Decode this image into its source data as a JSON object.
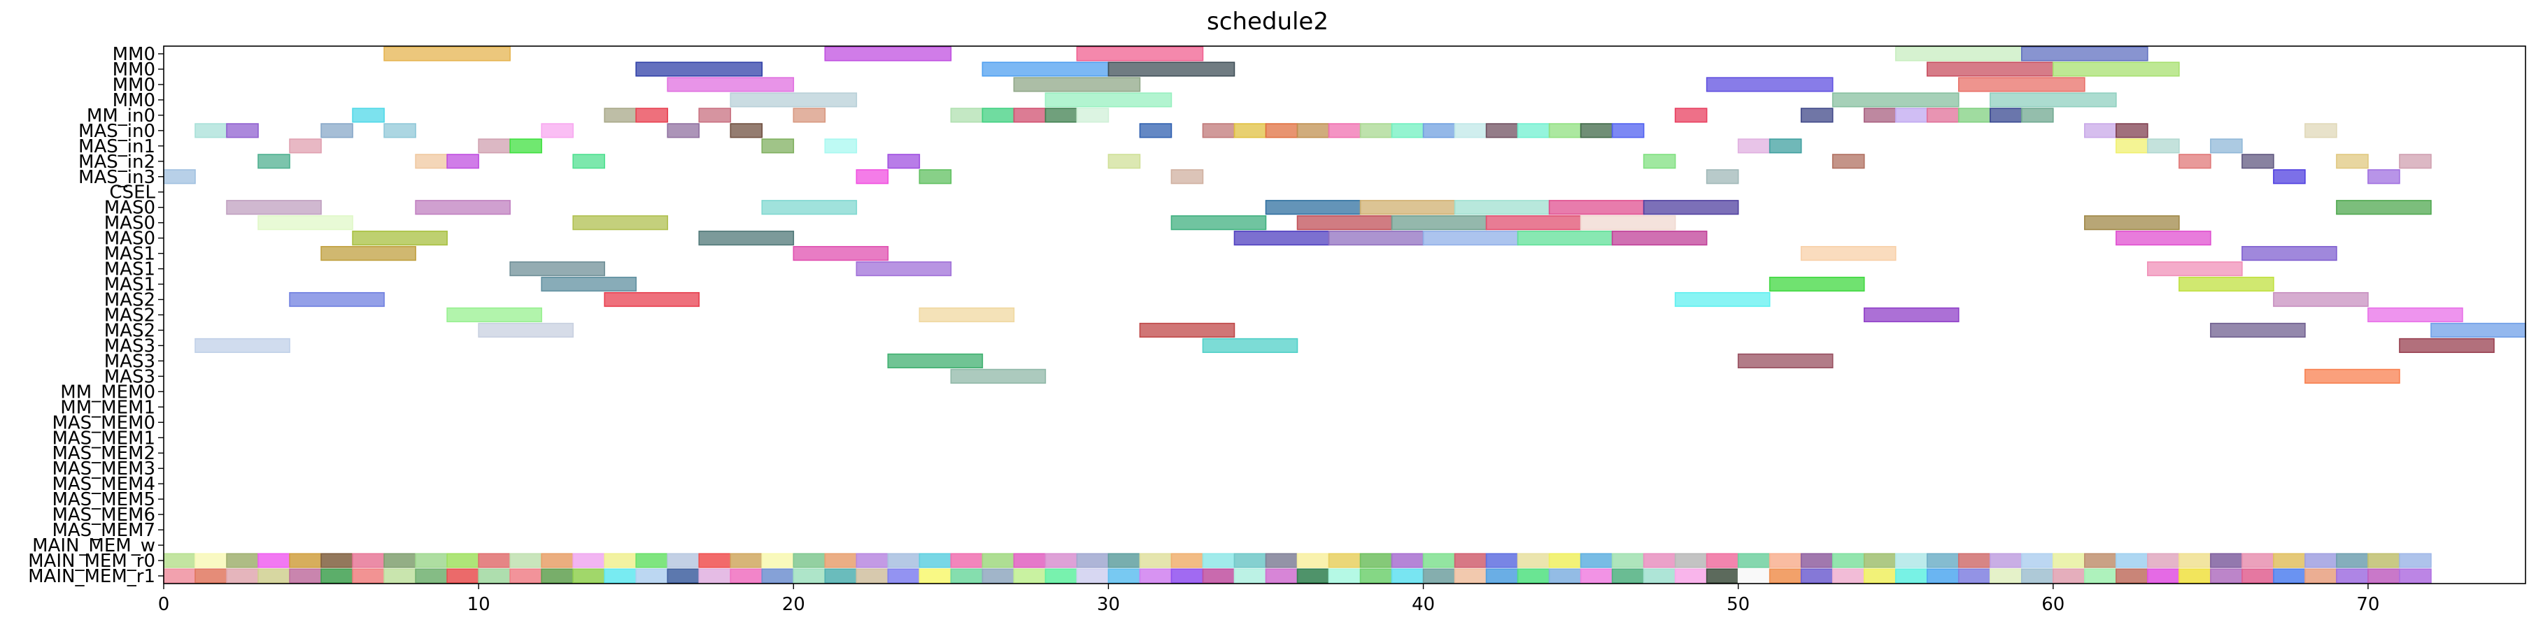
{
  "chart_data": {
    "type": "gantt",
    "title": "schedule2",
    "xlabel": "",
    "ylabel": "",
    "xlim": [
      0,
      75
    ],
    "xticks": [
      0,
      10,
      20,
      30,
      40,
      50,
      60,
      70
    ],
    "grid": false,
    "legend": "none",
    "rows": [
      "MM0",
      "MM0",
      "MM0",
      "MM0",
      "MM_in0",
      "MAS_in0",
      "MAS_in1",
      "MAS_in2",
      "MAS_in3",
      "CSEL",
      "MAS0",
      "MAS0",
      "MAS0",
      "MAS1",
      "MAS1",
      "MAS1",
      "MAS2",
      "MAS2",
      "MAS2",
      "MAS3",
      "MAS3",
      "MAS3",
      "MM_MEM0",
      "MM_MEM1",
      "MAS_MEM0",
      "MAS_MEM1",
      "MAS_MEM2",
      "MAS_MEM3",
      "MAS_MEM4",
      "MAS_MEM5",
      "MAS_MEM6",
      "MAS_MEM7",
      "MAIN_MEM_w",
      "MAIN_MEM_r0",
      "MAIN_MEM_r1"
    ],
    "bars": [
      {
        "row": 0,
        "start": 7,
        "end": 11,
        "color": "#e6b450"
      },
      {
        "row": 0,
        "start": 21,
        "end": 25,
        "color": "#c050e0"
      },
      {
        "row": 0,
        "start": 29,
        "end": 33,
        "color": "#f06090"
      },
      {
        "row": 0,
        "start": 55,
        "end": 59,
        "color": "#c8eec0"
      },
      {
        "row": 0,
        "start": 59,
        "end": 63,
        "color": "#6070c0"
      },
      {
        "row": 1,
        "start": 15,
        "end": 19,
        "color": "#3040a8"
      },
      {
        "row": 1,
        "start": 26,
        "end": 30,
        "color": "#50a0f0"
      },
      {
        "row": 1,
        "start": 30,
        "end": 34,
        "color": "#405058"
      },
      {
        "row": 1,
        "start": 56,
        "end": 60,
        "color": "#c85060"
      },
      {
        "row": 1,
        "start": 60,
        "end": 64,
        "color": "#a8e070"
      },
      {
        "row": 2,
        "start": 16,
        "end": 20,
        "color": "#e070e0"
      },
      {
        "row": 2,
        "start": 27,
        "end": 31,
        "color": "#90a888"
      },
      {
        "row": 2,
        "start": 49,
        "end": 53,
        "color": "#6050e0"
      },
      {
        "row": 2,
        "start": 57,
        "end": 61,
        "color": "#e87068"
      },
      {
        "row": 3,
        "start": 18,
        "end": 22,
        "color": "#b8d0d8"
      },
      {
        "row": 3,
        "start": 28,
        "end": 32,
        "color": "#98f0c0"
      },
      {
        "row": 3,
        "start": 53,
        "end": 57,
        "color": "#88c0a0"
      },
      {
        "row": 3,
        "start": 58,
        "end": 62,
        "color": "#90d0c0"
      },
      {
        "row": 4,
        "start": 6,
        "end": 7,
        "color": "#50d8e8"
      },
      {
        "row": 4,
        "start": 14,
        "end": 15,
        "color": "#a8a888"
      },
      {
        "row": 4,
        "start": 15,
        "end": 16,
        "color": "#e84050"
      },
      {
        "row": 4,
        "start": 17,
        "end": 18,
        "color": "#c87080"
      },
      {
        "row": 4,
        "start": 20,
        "end": 21,
        "color": "#d89880"
      },
      {
        "row": 4,
        "start": 25,
        "end": 26,
        "color": "#b0e0b0"
      },
      {
        "row": 4,
        "start": 26,
        "end": 27,
        "color": "#40d080"
      },
      {
        "row": 4,
        "start": 27,
        "end": 28,
        "color": "#d05070"
      },
      {
        "row": 4,
        "start": 28,
        "end": 29,
        "color": "#408050"
      },
      {
        "row": 4,
        "start": 29,
        "end": 30,
        "color": "#d0f0d8"
      },
      {
        "row": 4,
        "start": 48,
        "end": 49,
        "color": "#e84060"
      },
      {
        "row": 4,
        "start": 52,
        "end": 53,
        "color": "#404888"
      },
      {
        "row": 4,
        "start": 54,
        "end": 55,
        "color": "#a86080"
      },
      {
        "row": 4,
        "start": 55,
        "end": 56,
        "color": "#c0a8f0"
      },
      {
        "row": 4,
        "start": 56,
        "end": 57,
        "color": "#e07098"
      },
      {
        "row": 4,
        "start": 57,
        "end": 58,
        "color": "#80d080"
      },
      {
        "row": 4,
        "start": 58,
        "end": 59,
        "color": "#384890"
      },
      {
        "row": 4,
        "start": 59,
        "end": 60,
        "color": "#70a890"
      },
      {
        "row": 5,
        "start": 1,
        "end": 2,
        "color": "#a8e0d8"
      },
      {
        "row": 5,
        "start": 2,
        "end": 3,
        "color": "#9060d0"
      },
      {
        "row": 5,
        "start": 5,
        "end": 6,
        "color": "#88a8c8"
      },
      {
        "row": 5,
        "start": 7,
        "end": 8,
        "color": "#90c8d8"
      },
      {
        "row": 5,
        "start": 12,
        "end": 13,
        "color": "#f8a8f0"
      },
      {
        "row": 5,
        "start": 16,
        "end": 17,
        "color": "#9070a0"
      },
      {
        "row": 5,
        "start": 18,
        "end": 19,
        "color": "#705040"
      },
      {
        "row": 5,
        "start": 31,
        "end": 32,
        "color": "#3060b0"
      },
      {
        "row": 5,
        "start": 33,
        "end": 34,
        "color": "#c07878"
      },
      {
        "row": 5,
        "start": 34,
        "end": 35,
        "color": "#e0c040"
      },
      {
        "row": 5,
        "start": 35,
        "end": 36,
        "color": "#e07040"
      },
      {
        "row": 5,
        "start": 36,
        "end": 37,
        "color": "#c09050"
      },
      {
        "row": 5,
        "start": 37,
        "end": 38,
        "color": "#f070b0"
      },
      {
        "row": 5,
        "start": 38,
        "end": 39,
        "color": "#a8d890"
      },
      {
        "row": 5,
        "start": 39,
        "end": 40,
        "color": "#70f0c0"
      },
      {
        "row": 5,
        "start": 40,
        "end": 41,
        "color": "#70a0e0"
      },
      {
        "row": 5,
        "start": 41,
        "end": 42,
        "color": "#c0e8e8"
      },
      {
        "row": 5,
        "start": 42,
        "end": 43,
        "color": "#705060"
      },
      {
        "row": 5,
        "start": 43,
        "end": 44,
        "color": "#70f0d0"
      },
      {
        "row": 5,
        "start": 44,
        "end": 45,
        "color": "#90e080"
      },
      {
        "row": 5,
        "start": 45,
        "end": 46,
        "color": "#406848"
      },
      {
        "row": 5,
        "start": 46,
        "end": 47,
        "color": "#5060f0"
      },
      {
        "row": 5,
        "start": 61,
        "end": 62,
        "color": "#c8a8e8"
      },
      {
        "row": 5,
        "start": 62,
        "end": 63,
        "color": "#804050"
      },
      {
        "row": 5,
        "start": 68,
        "end": 69,
        "color": "#e0d8b8"
      },
      {
        "row": 6,
        "start": 4,
        "end": 5,
        "color": "#e0a0b0"
      },
      {
        "row": 6,
        "start": 10,
        "end": 11,
        "color": "#d0a0b0"
      },
      {
        "row": 6,
        "start": 11,
        "end": 12,
        "color": "#40e040"
      },
      {
        "row": 6,
        "start": 19,
        "end": 20,
        "color": "#80b060"
      },
      {
        "row": 6,
        "start": 21,
        "end": 22,
        "color": "#a8f8f0"
      },
      {
        "row": 6,
        "start": 50,
        "end": 51,
        "color": "#e0b0e0"
      },
      {
        "row": 6,
        "start": 51,
        "end": 52,
        "color": "#40a0a0"
      },
      {
        "row": 6,
        "start": 62,
        "end": 63,
        "color": "#f0f070"
      },
      {
        "row": 6,
        "start": 63,
        "end": 64,
        "color": "#b0d8d0"
      },
      {
        "row": 6,
        "start": 65,
        "end": 66,
        "color": "#90b8d8"
      },
      {
        "row": 7,
        "start": 3,
        "end": 4,
        "color": "#50b090"
      },
      {
        "row": 7,
        "start": 8,
        "end": 9,
        "color": "#f0c8a0"
      },
      {
        "row": 7,
        "start": 9,
        "end": 10,
        "color": "#c050e0"
      },
      {
        "row": 7,
        "start": 13,
        "end": 14,
        "color": "#50e090"
      },
      {
        "row": 7,
        "start": 23,
        "end": 24,
        "color": "#a050e0"
      },
      {
        "row": 7,
        "start": 30,
        "end": 31,
        "color": "#d0e098"
      },
      {
        "row": 7,
        "start": 47,
        "end": 48,
        "color": "#80e080"
      },
      {
        "row": 7,
        "start": 53,
        "end": 54,
        "color": "#b07060"
      },
      {
        "row": 7,
        "start": 64,
        "end": 65,
        "color": "#e07878"
      },
      {
        "row": 7,
        "start": 66,
        "end": 67,
        "color": "#605880"
      },
      {
        "row": 7,
        "start": 69,
        "end": 70,
        "color": "#e0c880"
      },
      {
        "row": 7,
        "start": 71,
        "end": 72,
        "color": "#d0a0b0"
      },
      {
        "row": 8,
        "start": 0,
        "end": 1,
        "color": "#a0c0e0"
      },
      {
        "row": 8,
        "start": 22,
        "end": 23,
        "color": "#f050e0"
      },
      {
        "row": 8,
        "start": 24,
        "end": 25,
        "color": "#60c060"
      },
      {
        "row": 8,
        "start": 32,
        "end": 33,
        "color": "#d0b0a0"
      },
      {
        "row": 8,
        "start": 49,
        "end": 50,
        "color": "#a0b8b8"
      },
      {
        "row": 8,
        "start": 67,
        "end": 68,
        "color": "#5040e0"
      },
      {
        "row": 8,
        "start": 70,
        "end": 71,
        "color": "#a070e0"
      },
      {
        "row": 10,
        "start": 2,
        "end": 5,
        "color": "#c0a0c0"
      },
      {
        "row": 10,
        "start": 8,
        "end": 11,
        "color": "#c080c0"
      },
      {
        "row": 10,
        "start": 19,
        "end": 22,
        "color": "#80d8d0"
      },
      {
        "row": 10,
        "start": 35,
        "end": 38,
        "color": "#3070a0"
      },
      {
        "row": 10,
        "start": 38,
        "end": 41,
        "color": "#d0b070"
      },
      {
        "row": 10,
        "start": 41,
        "end": 44,
        "color": "#a0e0d0"
      },
      {
        "row": 10,
        "start": 44,
        "end": 47,
        "color": "#e05090"
      },
      {
        "row": 10,
        "start": 47,
        "end": 50,
        "color": "#5040a0"
      },
      {
        "row": 10,
        "start": 69,
        "end": 72,
        "color": "#50a850"
      },
      {
        "row": 11,
        "start": 3,
        "end": 6,
        "color": "#e0f8c8"
      },
      {
        "row": 11,
        "start": 13,
        "end": 16,
        "color": "#b0c050"
      },
      {
        "row": 11,
        "start": 32,
        "end": 35,
        "color": "#40b080"
      },
      {
        "row": 11,
        "start": 36,
        "end": 39,
        "color": "#c05058"
      },
      {
        "row": 11,
        "start": 39,
        "end": 42,
        "color": "#70a090"
      },
      {
        "row": 11,
        "start": 42,
        "end": 45,
        "color": "#e05070"
      },
      {
        "row": 11,
        "start": 45,
        "end": 48,
        "color": "#f0d8d0"
      },
      {
        "row": 11,
        "start": 61,
        "end": 64,
        "color": "#a08848"
      },
      {
        "row": 12,
        "start": 6,
        "end": 9,
        "color": "#a8c040"
      },
      {
        "row": 12,
        "start": 17,
        "end": 20,
        "color": "#507878"
      },
      {
        "row": 12,
        "start": 34,
        "end": 37,
        "color": "#5040c0"
      },
      {
        "row": 12,
        "start": 37,
        "end": 40,
        "color": "#9070c0"
      },
      {
        "row": 12,
        "start": 40,
        "end": 43,
        "color": "#90b0e8"
      },
      {
        "row": 12,
        "start": 43,
        "end": 46,
        "color": "#60e098"
      },
      {
        "row": 12,
        "start": 46,
        "end": 49,
        "color": "#c04098"
      },
      {
        "row": 12,
        "start": 62,
        "end": 65,
        "color": "#e050d0"
      },
      {
        "row": 13,
        "start": 5,
        "end": 8,
        "color": "#c0a040"
      },
      {
        "row": 13,
        "start": 20,
        "end": 23,
        "color": "#e050b0"
      },
      {
        "row": 13,
        "start": 52,
        "end": 55,
        "color": "#f8d0a8"
      },
      {
        "row": 13,
        "start": 66,
        "end": 69,
        "color": "#8060d0"
      },
      {
        "row": 14,
        "start": 11,
        "end": 14,
        "color": "#709098"
      },
      {
        "row": 14,
        "start": 22,
        "end": 25,
        "color": "#a070d8"
      },
      {
        "row": 14,
        "start": 63,
        "end": 66,
        "color": "#f090b8"
      },
      {
        "row": 15,
        "start": 12,
        "end": 15,
        "color": "#6090a0"
      },
      {
        "row": 15,
        "start": 51,
        "end": 54,
        "color": "#40d840"
      },
      {
        "row": 15,
        "start": 64,
        "end": 67,
        "color": "#c0e040"
      },
      {
        "row": 16,
        "start": 4,
        "end": 7,
        "color": "#7080e0"
      },
      {
        "row": 16,
        "start": 14,
        "end": 17,
        "color": "#e84050"
      },
      {
        "row": 16,
        "start": 48,
        "end": 51,
        "color": "#60f0f0"
      },
      {
        "row": 16,
        "start": 67,
        "end": 70,
        "color": "#c890c0"
      },
      {
        "row": 17,
        "start": 9,
        "end": 12,
        "color": "#98f090"
      },
      {
        "row": 17,
        "start": 24,
        "end": 27,
        "color": "#f0d8a0"
      },
      {
        "row": 17,
        "start": 54,
        "end": 57,
        "color": "#9040c8"
      },
      {
        "row": 17,
        "start": 70,
        "end": 73,
        "color": "#e870e8"
      },
      {
        "row": 18,
        "start": 10,
        "end": 13,
        "color": "#c8d0e0"
      },
      {
        "row": 18,
        "start": 31,
        "end": 34,
        "color": "#c04848"
      },
      {
        "row": 18,
        "start": 65,
        "end": 68,
        "color": "#706090"
      },
      {
        "row": 18,
        "start": 72,
        "end": 75,
        "color": "#70a0e8"
      },
      {
        "row": 19,
        "start": 1,
        "end": 4,
        "color": "#c0d0e8"
      },
      {
        "row": 19,
        "start": 33,
        "end": 36,
        "color": "#50d0c8"
      },
      {
        "row": 19,
        "start": 71,
        "end": 74,
        "color": "#984050"
      },
      {
        "row": 20,
        "start": 23,
        "end": 26,
        "color": "#40b070"
      },
      {
        "row": 20,
        "start": 50,
        "end": 53,
        "color": "#985060"
      },
      {
        "row": 21,
        "start": 25,
        "end": 28,
        "color": "#90b8a8"
      },
      {
        "row": 21,
        "start": 68,
        "end": 71,
        "color": "#f88050"
      }
    ],
    "mem_rows": [
      {
        "row": 33,
        "start": 0,
        "end": 72,
        "colors": [
          "#b8e090",
          "#f8f8b8",
          "#a0b070",
          "#f060f0",
          "#d0a040",
          "#806040",
          "#e87898",
          "#80a070",
          "#a0d890",
          "#a0e060",
          "#e07070",
          "#c0e0b0",
          "#e8a068",
          "#f0a8f0",
          "#f0f090",
          "#68e068",
          "#b8c8e0",
          "#f05050",
          "#d0a860",
          "#f8f8b0",
          "#80c890",
          "#e8a070",
          "#b888e0",
          "#a8c0e0",
          "#60d0e0",
          "#f070b0",
          "#a0d880",
          "#e060c0",
          "#d890d0",
          "#a0a8d0",
          "#60a0a0",
          "#e0e0a0",
          "#f0b070",
          "#90e8e8",
          "#70c8c8",
          "#808098",
          "#f8f0a0",
          "#e8d060",
          "#70c060",
          "#a870d0",
          "#80e090",
          "#d06070",
          "#6070e0",
          "#e8e0a0",
          "#f0f060",
          "#60b0e0",
          "#a0e0b0",
          "#e890c0",
          "#b8b8b8",
          "#f070a0",
          "#70d0a0",
          "#f8b090",
          "#9060a0",
          "#80e0a0",
          "#a0c070",
          "#b0e8e8",
          "#70b0c8",
          "#d07070",
          "#c0a0e0",
          "#b0d0f0",
          "#e8f0a0",
          "#c09070",
          "#a0d0f0",
          "#e0a8c0",
          "#f0e090",
          "#8060a0",
          "#e890b0",
          "#e0c060",
          "#a0a0e0",
          "#70a0b0",
          "#c0c070",
          "#a0b8e8"
        ]
      },
      {
        "row": 34,
        "start": 0,
        "end": 72,
        "colors": [
          "#f090a0",
          "#e07860",
          "#e0a8b0",
          "#d0d090",
          "#c070a0",
          "#40a050",
          "#f08080",
          "#c0e0a0",
          "#70b070",
          "#e85050",
          "#a0d8a0",
          "#f08088",
          "#60a050",
          "#90d050",
          "#60e8f0",
          "#b0d0f0",
          "#4060a0",
          "#e0b0e0",
          "#f070c0",
          "#7090d0",
          "#a0e0c0",
          "#50b0b0",
          "#d0c0a0",
          "#8080f0",
          "#f8f870",
          "#70d8a0",
          "#90a8c0",
          "#c0f090",
          "#60f0a0",
          "#d0d0f0",
          "#60c0f0",
          "#d080f0",
          "#9050f0",
          "#c050a0",
          "#b0f0e0",
          "#d070d0",
          "#308050",
          "#a8f8e0",
          "#70d070",
          "#60e0f0",
          "#70a0a0",
          "#f0c0a0",
          "#50a0e0",
          "#50e080",
          "#80b0e0",
          "#f080e0",
          "#50b080",
          "#a0e0d0",
          "#f8a8e8",
          "#405040",
          "#f8f8f8",
          "#f09050",
          "#7060d0",
          "#f0b0d0",
          "#f0f060",
          "#60f0e0",
          "#50a8f0",
          "#8080e0",
          "#e0f0c0",
          "#a0c0d0",
          "#e0a0b0",
          "#a0f0b0",
          "#c07060",
          "#e050e0",
          "#f0e040",
          "#b070c0",
          "#e06090",
          "#5080f0",
          "#e8a080",
          "#a070e0",
          "#c060c0",
          "#b070e0"
        ]
      }
    ]
  }
}
